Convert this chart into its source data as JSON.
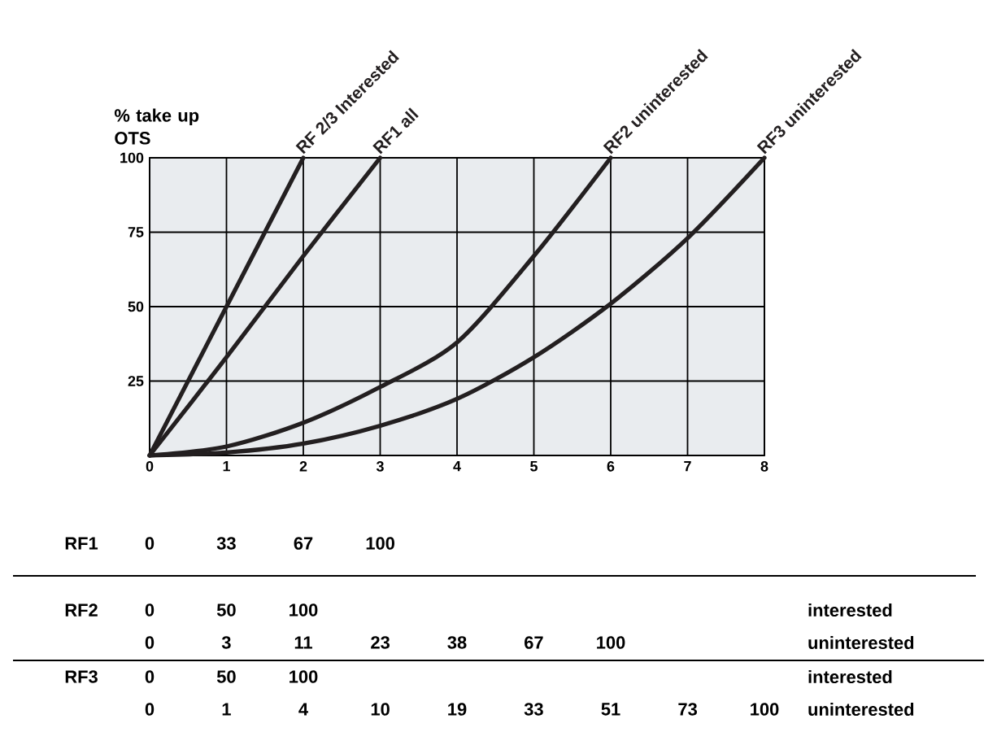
{
  "chart_data": [
    {
      "type": "line",
      "ylabel": "% take up OTS",
      "xlim": [
        0,
        8
      ],
      "xticks": [
        0,
        1,
        2,
        3,
        4,
        5,
        6,
        7,
        8
      ],
      "ylim": [
        0,
        100
      ],
      "yticks": [
        25,
        50,
        75,
        100
      ],
      "grid": true,
      "series": [
        {
          "name": "RF 2/3 Interested",
          "color": "#231f20",
          "x": [
            0,
            1,
            2
          ],
          "values": [
            0,
            50,
            100
          ]
        },
        {
          "name": "RF1 all",
          "color": "#231f20",
          "x": [
            0,
            1,
            2,
            3
          ],
          "values": [
            0,
            33,
            67,
            100
          ]
        },
        {
          "name": "RF2 uninterested",
          "color": "#231f20",
          "x": [
            0,
            1,
            2,
            3,
            4,
            5,
            6
          ],
          "values": [
            0,
            3,
            11,
            23,
            38,
            67,
            100
          ]
        },
        {
          "name": "RF3 uninterested",
          "color": "#231f20",
          "x": [
            0,
            1,
            2,
            3,
            4,
            5,
            6,
            7,
            8
          ],
          "values": [
            0,
            1,
            4,
            10,
            19,
            33,
            51,
            73,
            100
          ]
        }
      ]
    },
    {
      "type": "other",
      "annotations": [
        "RF1",
        "0",
        "33",
        "67",
        "100",
        "RF2",
        "0",
        "50",
        "100",
        "interested",
        "0",
        "3",
        "11",
        "23",
        "38",
        "67",
        "100",
        "uninterested",
        "RF3",
        "0",
        "50",
        "100",
        "interested",
        "0",
        "1",
        "4",
        "10",
        "19",
        "33",
        "51",
        "73",
        "100",
        "uninterested"
      ]
    }
  ]
}
